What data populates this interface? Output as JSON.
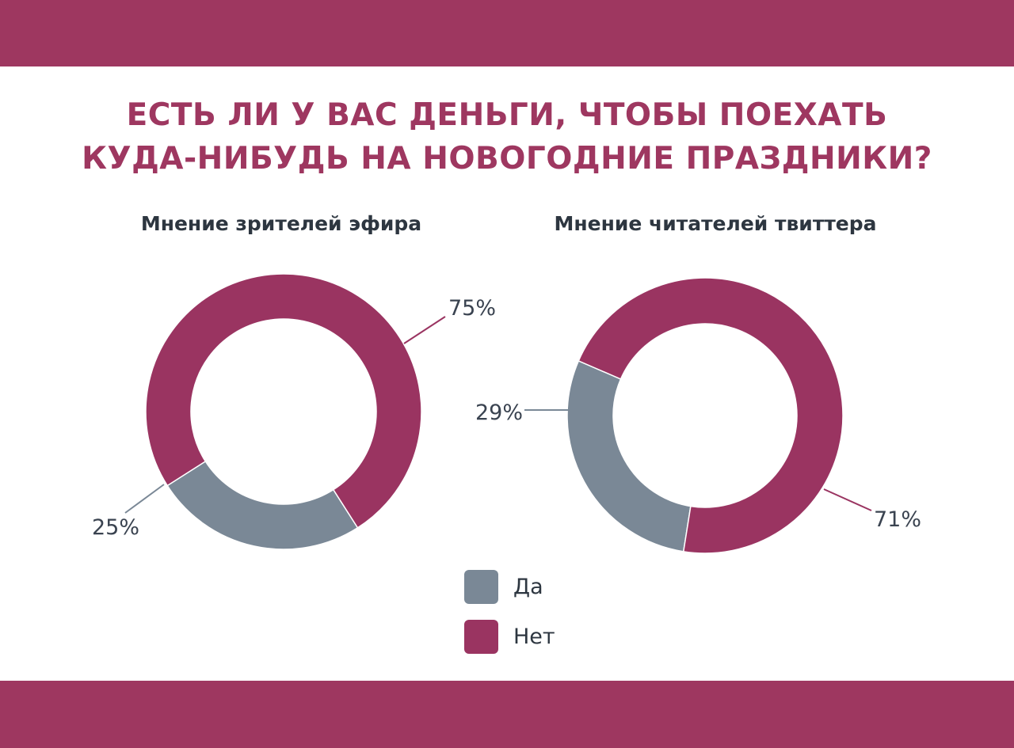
{
  "colors": {
    "band": "#9e3760",
    "title": "#9e3760",
    "yes": "#7a8896",
    "no": "#9a3461",
    "leader_yes": "#7a8896",
    "leader_no": "#9a3461"
  },
  "title_lines": [
    "ЕСТЬ ЛИ У ВАС ДЕНЬГИ, ЧТОБЫ ПОЕХАТЬ",
    "КУДА-НИБУДЬ НА НОВОГОДНИЕ ПРАЗДНИКИ?"
  ],
  "legend": [
    {
      "label": "Да",
      "color_key": "yes"
    },
    {
      "label": "Нет",
      "color_key": "no"
    }
  ],
  "chart_data": [
    {
      "type": "pie",
      "donut": true,
      "title": "Мнение зрителей эфира",
      "categories": [
        "Да",
        "Нет"
      ],
      "values": [
        25,
        75
      ],
      "data_labels": [
        "25%",
        "75%"
      ]
    },
    {
      "type": "pie",
      "donut": true,
      "title": "Мнение читателей твиттера",
      "categories": [
        "Да",
        "Нет"
      ],
      "values": [
        29,
        71
      ],
      "data_labels": [
        "29%",
        "71%"
      ]
    }
  ]
}
